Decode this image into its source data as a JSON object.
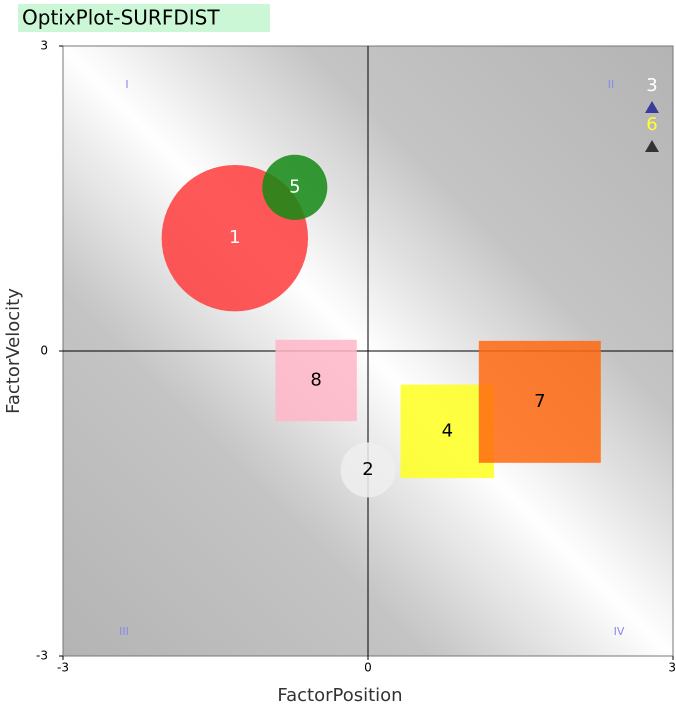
{
  "chart_data": {
    "type": "bubble",
    "title": "OptixPlot-SURFDIST",
    "x_label": "FactorPosition",
    "y_label": "FactorVelocity",
    "xlim": [
      -3,
      3
    ],
    "ylim": [
      -3,
      3
    ],
    "xticks": [
      -3,
      0,
      3
    ],
    "yticks": [
      -3,
      0,
      3
    ],
    "quadrants": [
      "I",
      "II",
      "III",
      "IV"
    ],
    "points": [
      {
        "label": "1",
        "shape": "circle",
        "color": "#ff3b3b",
        "x": -1.31,
        "y": 1.11,
        "size": 0.72
      },
      {
        "label": "5",
        "shape": "circle",
        "color": "#138a13",
        "x": -0.72,
        "y": 1.61,
        "size": 0.32
      },
      {
        "label": "8",
        "shape": "square",
        "color": "#ffb6c8",
        "x": -0.51,
        "y": -0.29,
        "size": 0.4
      },
      {
        "label": "2",
        "shape": "circle",
        "color": "#eeeeee",
        "x": 0,
        "y": -1.17,
        "size": 0.27
      },
      {
        "label": "4",
        "shape": "square",
        "color": "#ffff20",
        "x": 0.78,
        "y": -0.79,
        "size": 0.46
      },
      {
        "label": "7",
        "shape": "square",
        "color": "#ff6a10",
        "x": 1.69,
        "y": -0.5,
        "size": 0.6
      }
    ],
    "legend_items": [
      {
        "label": "3",
        "label_color": "#ffffff",
        "marker_color": "#3a3a9a"
      },
      {
        "label": "6",
        "label_color": "#ffff33",
        "marker_color": "#333333"
      }
    ]
  }
}
